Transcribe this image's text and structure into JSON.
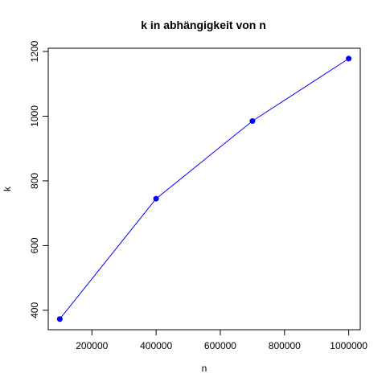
{
  "chart_data": {
    "type": "line",
    "title": "k in abhängigkeit von n",
    "xlabel": "n",
    "ylabel": "k",
    "x": [
      100000,
      400000,
      700000,
      1000000
    ],
    "series": [
      {
        "values": [
          373,
          745,
          985,
          1178
        ]
      }
    ],
    "xlim": [
      64000,
      1036000
    ],
    "ylim": [
      340,
      1210
    ],
    "x_ticks": [
      200000,
      400000,
      600000,
      800000,
      1000000
    ],
    "x_tick_labels": [
      "200000",
      "400000",
      "600000",
      "800000",
      "1000000"
    ],
    "y_ticks": [
      400,
      600,
      800,
      1000,
      1200
    ],
    "y_tick_labels": [
      "400",
      "600",
      "800",
      "1000",
      "1200"
    ],
    "line_color": "#0000ff",
    "point_color": "#0000ff",
    "grid": false
  }
}
